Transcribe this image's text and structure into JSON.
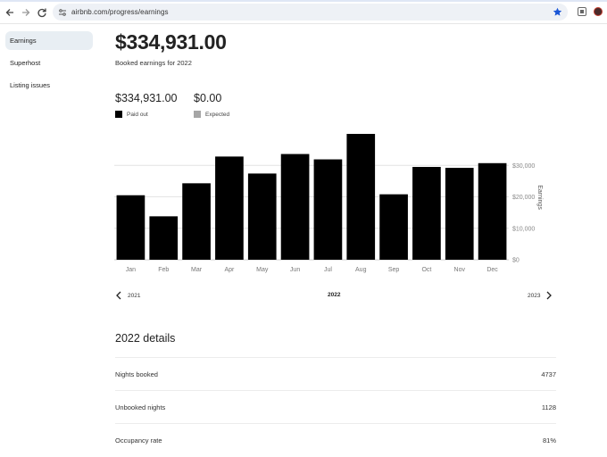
{
  "browser": {
    "url": "airbnb.com/progress/earnings"
  },
  "sidebar": {
    "items": [
      {
        "label": "Earnings",
        "active": true
      },
      {
        "label": "Superhost",
        "active": false
      },
      {
        "label": "Listing issues",
        "active": false
      }
    ]
  },
  "summary": {
    "total": "$334,931.00",
    "subtitle": "Booked earnings for 2022",
    "paid_value": "$334,931.00",
    "paid_label": "Paid out",
    "expected_value": "$0.00",
    "expected_label": "Expected"
  },
  "colors": {
    "paid": "#000000",
    "expected": "#a6a6a6",
    "active_sidebar": "#e8eef3",
    "star": "#1a56d6"
  },
  "chart_data": {
    "type": "bar",
    "categories": [
      "Jan",
      "Feb",
      "Mar",
      "Apr",
      "May",
      "Jun",
      "Jul",
      "Aug",
      "Sep",
      "Oct",
      "Nov",
      "Dec"
    ],
    "series": [
      {
        "name": "Paid out",
        "values": [
          20500,
          13800,
          24300,
          32800,
          27400,
          33600,
          31900,
          40000,
          20800,
          29500,
          29200,
          30700
        ]
      }
    ],
    "ylabel": "Earnings",
    "ylim": [
      0,
      40000
    ],
    "yticks": [
      0,
      10000,
      20000,
      30000
    ],
    "ytick_labels": [
      "$0",
      "$10,000",
      "$20,000",
      "$30,000"
    ],
    "grid": true
  },
  "year_nav": {
    "prev": "2021",
    "current": "2022",
    "next": "2023"
  },
  "details": {
    "title": "2022 details",
    "rows": [
      {
        "label": "Nights booked",
        "value": "4737"
      },
      {
        "label": "Unbooked nights",
        "value": "1128"
      },
      {
        "label": "Occupancy rate",
        "value": "81%"
      }
    ]
  },
  "icons": {
    "back": "arrow-left-icon",
    "forward": "arrow-right-icon",
    "reload": "reload-icon",
    "site": "tune-icon",
    "bookmark": "star-icon",
    "extension": "extension-icon",
    "profile": "avatar",
    "prev_year": "chevron-left-icon",
    "next_year": "chevron-right-icon"
  }
}
